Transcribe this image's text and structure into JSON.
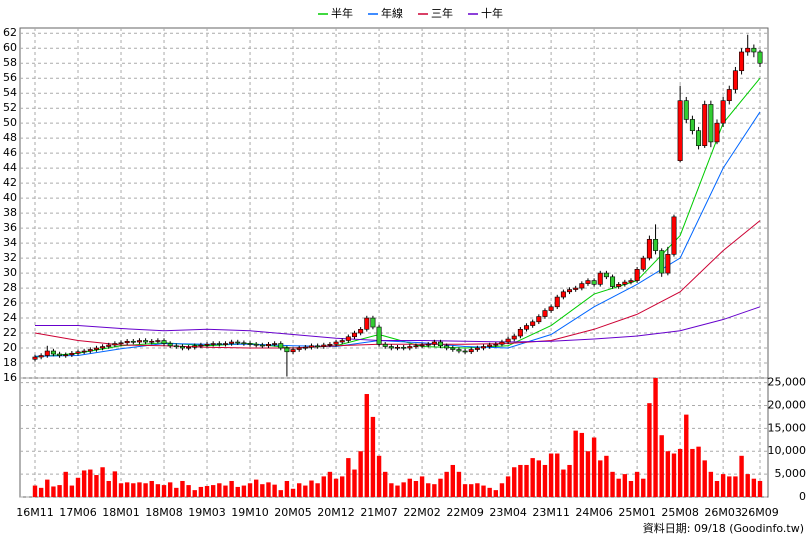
{
  "chart_data": {
    "type": "candlestick",
    "categories": [
      "16M11",
      "16M12",
      "17M01",
      "17M02",
      "17M03",
      "17M04",
      "17M05",
      "17M06",
      "17M07",
      "17M08",
      "17M09",
      "17M10",
      "17M11",
      "17M12",
      "18M01",
      "18M02",
      "18M03",
      "18M04",
      "18M05",
      "18M06",
      "18M07",
      "18M08",
      "18M09",
      "18M10",
      "18M11",
      "18M12",
      "19M01",
      "19M02",
      "19M03",
      "19M04",
      "19M05",
      "19M06",
      "19M07",
      "19M08",
      "19M09",
      "19M10",
      "19M11",
      "19M12",
      "20M01",
      "20M02",
      "20M03",
      "20M04",
      "20M05",
      "20M06",
      "20M07",
      "20M08",
      "20M09",
      "20M10",
      "20M11",
      "20M12",
      "21M01",
      "21M02",
      "21M03",
      "21M04",
      "21M05",
      "21M06",
      "21M07",
      "21M08",
      "21M09",
      "21M10",
      "21M11",
      "21M12",
      "22M01",
      "22M02",
      "22M03",
      "22M04",
      "22M05",
      "22M06",
      "22M07",
      "22M08",
      "22M09",
      "22M10",
      "22M11",
      "22M12",
      "23M01",
      "23M02",
      "23M03",
      "23M04",
      "23M05",
      "23M06",
      "23M07",
      "23M08",
      "23M09",
      "23M10",
      "23M11",
      "23M12",
      "24M01",
      "24M02",
      "24M03",
      "24M04",
      "24M05",
      "24M06",
      "24M07",
      "24M08",
      "24M09",
      "24M10",
      "24M11",
      "24M12",
      "25M01",
      "25M02",
      "25M03",
      "25M04",
      "25M05",
      "25M06",
      "25M07",
      "25M08",
      "25M09",
      "25M10",
      "25M11",
      "25M12",
      "26M01",
      "26M02",
      "26M03",
      "26M04",
      "26M05",
      "26M06",
      "26M07",
      "26M08",
      "26M09"
    ],
    "xticks": [
      "16M11",
      "17M06",
      "18M01",
      "18M08",
      "19M03",
      "19M10",
      "20M05",
      "20M12",
      "21M07",
      "22M02",
      "22M09",
      "23M04",
      "23M11",
      "24M06",
      "25M01",
      "25M08",
      "26M03",
      "26M09"
    ],
    "ylim": [
      16,
      62.7
    ],
    "yticks": [
      16,
      18,
      20,
      22,
      24,
      26,
      28,
      30,
      32,
      34,
      36,
      38,
      40,
      42,
      44,
      46,
      48,
      50,
      52,
      54,
      56,
      58,
      60,
      62
    ],
    "grid": true,
    "candles": {
      "up_color": "#ff0000",
      "down_color": "#33cc33",
      "open": [
        18.5,
        18.8,
        19.0,
        19.6,
        19.2,
        19.0,
        19.1,
        19.3,
        19.5,
        19.6,
        19.8,
        20.0,
        20.2,
        20.4,
        20.6,
        20.7,
        20.9,
        20.8,
        21.0,
        20.8,
        20.9,
        21.0,
        20.6,
        20.3,
        20.2,
        20.0,
        20.1,
        20.3,
        20.4,
        20.5,
        20.6,
        20.5,
        20.6,
        20.8,
        20.7,
        20.6,
        20.5,
        20.4,
        20.3,
        20.5,
        20.6,
        20.0,
        19.5,
        19.8,
        20.0,
        20.1,
        20.3,
        20.2,
        20.4,
        20.5,
        20.8,
        21.0,
        21.5,
        22.0,
        22.5,
        24.0,
        22.8,
        20.5,
        20.2,
        20.0,
        20.1,
        20.0,
        20.2,
        20.3,
        20.4,
        20.5,
        20.8,
        20.3,
        20.0,
        19.8,
        19.6,
        19.5,
        19.8,
        20.0,
        20.2,
        20.4,
        20.5,
        20.8,
        21.2,
        21.6,
        22.5,
        23.0,
        23.5,
        24.2,
        25.0,
        25.5,
        26.8,
        27.5,
        27.8,
        28.0,
        28.6,
        29.0,
        28.5,
        30.0,
        29.5,
        28.2,
        28.5,
        28.8,
        29.0,
        30.5,
        32.0,
        34.5,
        33.0,
        30.0,
        32.5,
        45.0,
        53.0,
        50.5,
        49.0,
        47.0,
        52.5,
        47.5,
        50.0,
        53.0,
        54.5,
        57.0,
        59.5,
        60.0,
        59.5
      ],
      "high": [
        19.1,
        19.3,
        20.3,
        19.9,
        19.5,
        19.4,
        19.6,
        19.8,
        19.9,
        20.1,
        20.3,
        20.5,
        20.7,
        20.9,
        21.0,
        21.2,
        21.2,
        21.3,
        21.3,
        21.2,
        21.3,
        21.3,
        20.9,
        20.6,
        20.5,
        20.4,
        20.6,
        20.7,
        20.8,
        20.9,
        20.9,
        20.9,
        21.1,
        21.1,
        21.0,
        20.9,
        20.8,
        20.7,
        20.8,
        20.9,
        20.9,
        20.3,
        20.1,
        20.3,
        20.4,
        20.6,
        20.6,
        20.7,
        20.8,
        21.1,
        21.3,
        21.8,
        22.3,
        22.8,
        24.3,
        24.3,
        23.1,
        20.8,
        20.5,
        20.4,
        20.4,
        20.5,
        20.6,
        20.7,
        20.8,
        21.1,
        21.1,
        20.6,
        20.3,
        20.1,
        19.9,
        20.1,
        20.3,
        20.5,
        20.7,
        20.8,
        21.1,
        21.5,
        21.9,
        22.8,
        23.3,
        23.8,
        24.5,
        25.3,
        25.8,
        27.1,
        27.8,
        28.1,
        28.3,
        28.9,
        29.3,
        29.3,
        30.3,
        30.3,
        29.8,
        28.8,
        29.1,
        29.3,
        30.8,
        32.3,
        35.0,
        36.5,
        33.3,
        33.5,
        37.8,
        55.0,
        53.5,
        51.0,
        49.5,
        53.0,
        53.0,
        50.5,
        53.5,
        55.0,
        57.5,
        60.0,
        61.8,
        60.5,
        59.8
      ],
      "low": [
        18.2,
        18.5,
        18.7,
        18.9,
        18.7,
        18.7,
        18.8,
        19.0,
        19.2,
        19.3,
        19.5,
        19.7,
        19.9,
        20.1,
        20.3,
        20.4,
        20.5,
        20.5,
        20.5,
        20.5,
        20.6,
        20.3,
        20.0,
        19.9,
        19.7,
        19.7,
        19.8,
        20.0,
        20.1,
        20.2,
        20.2,
        20.2,
        20.3,
        20.4,
        20.3,
        20.2,
        20.1,
        20.0,
        20.0,
        20.2,
        19.7,
        16.2,
        19.2,
        19.5,
        19.7,
        19.8,
        19.9,
        19.9,
        20.1,
        20.2,
        20.5,
        20.7,
        21.2,
        21.7,
        22.2,
        22.5,
        20.2,
        19.9,
        19.7,
        19.7,
        19.7,
        19.7,
        19.9,
        20.0,
        20.1,
        20.2,
        20.0,
        19.7,
        19.5,
        19.3,
        19.2,
        19.2,
        19.5,
        19.7,
        19.9,
        20.1,
        20.2,
        20.5,
        20.9,
        21.3,
        22.2,
        22.7,
        23.2,
        23.9,
        24.7,
        25.2,
        26.5,
        27.2,
        27.5,
        27.7,
        28.3,
        28.2,
        28.2,
        29.2,
        27.9,
        27.9,
        28.2,
        28.5,
        28.7,
        30.2,
        31.7,
        32.5,
        29.5,
        29.7,
        32.2,
        44.8,
        50.0,
        48.5,
        46.5,
        46.7,
        46.8,
        47.2,
        49.5,
        52.5,
        54.0,
        56.5,
        59.0,
        58.8,
        57.5
      ],
      "close": [
        18.8,
        19.0,
        19.6,
        19.2,
        19.0,
        19.1,
        19.3,
        19.5,
        19.6,
        19.8,
        20.0,
        20.2,
        20.4,
        20.6,
        20.7,
        20.9,
        20.8,
        21.0,
        20.8,
        20.9,
        21.0,
        20.6,
        20.3,
        20.2,
        20.0,
        20.1,
        20.3,
        20.4,
        20.5,
        20.6,
        20.5,
        20.6,
        20.8,
        20.7,
        20.6,
        20.5,
        20.4,
        20.3,
        20.5,
        20.6,
        20.0,
        19.5,
        19.8,
        20.0,
        20.1,
        20.3,
        20.2,
        20.4,
        20.5,
        20.8,
        21.0,
        21.5,
        22.0,
        22.5,
        24.0,
        22.8,
        20.5,
        20.2,
        20.0,
        20.1,
        20.0,
        20.2,
        20.3,
        20.4,
        20.5,
        20.8,
        20.3,
        20.0,
        19.8,
        19.6,
        19.5,
        19.8,
        20.0,
        20.2,
        20.4,
        20.5,
        20.8,
        21.2,
        21.6,
        22.5,
        23.0,
        23.5,
        24.2,
        25.0,
        25.5,
        26.8,
        27.5,
        27.8,
        28.0,
        28.6,
        29.0,
        28.5,
        30.0,
        29.5,
        28.2,
        28.5,
        28.8,
        29.0,
        30.5,
        32.0,
        34.5,
        33.0,
        30.0,
        32.5,
        37.5,
        53.0,
        50.5,
        49.0,
        47.0,
        52.5,
        47.5,
        50.0,
        53.0,
        54.5,
        57.0,
        59.5,
        60.0,
        59.5,
        58.0
      ]
    },
    "series": [
      {
        "name": "半年",
        "color": "#00cc00",
        "x": [
          "16M11",
          "17M06",
          "18M01",
          "18M08",
          "19M03",
          "19M10",
          "20M05",
          "20M12",
          "21M07",
          "22M02",
          "22M09",
          "23M04",
          "23M11",
          "24M06",
          "25M01",
          "25M08",
          "26M03",
          "26M09"
        ],
        "values": [
          18.8,
          19.3,
          20.3,
          20.7,
          20.3,
          20.6,
          20.0,
          20.3,
          21.8,
          20.2,
          20.0,
          20.3,
          23.0,
          27.2,
          29.0,
          35.0,
          50.0,
          56.0
        ]
      },
      {
        "name": "年線",
        "color": "#0066ff",
        "x": [
          "16M11",
          "17M06",
          "18M01",
          "18M08",
          "19M03",
          "19M10",
          "20M05",
          "20M12",
          "21M07",
          "22M02",
          "22M09",
          "23M04",
          "23M11",
          "24M06",
          "25M01",
          "25M08",
          "26M03",
          "26M09"
        ],
        "values": [
          18.9,
          19.0,
          19.9,
          20.6,
          20.5,
          20.5,
          20.3,
          20.2,
          21.0,
          20.7,
          20.2,
          20.0,
          21.8,
          25.5,
          28.5,
          32.0,
          44.0,
          51.5
        ]
      },
      {
        "name": "三年",
        "color": "#cc0033",
        "x": [
          "16M11",
          "17M06",
          "18M01",
          "18M08",
          "19M03",
          "19M10",
          "20M05",
          "20M12",
          "21M07",
          "22M02",
          "22M09",
          "23M04",
          "23M11",
          "24M06",
          "25M01",
          "25M08",
          "26M03",
          "26M09"
        ],
        "values": [
          22.0,
          21.0,
          20.4,
          20.3,
          20.1,
          20.0,
          20.0,
          20.3,
          20.5,
          20.5,
          20.5,
          20.6,
          21.0,
          22.5,
          24.5,
          27.5,
          33.0,
          37.0
        ]
      },
      {
        "name": "十年",
        "color": "#6600cc",
        "x": [
          "16M11",
          "17M06",
          "18M01",
          "18M08",
          "19M03",
          "19M10",
          "20M05",
          "20M12",
          "21M07",
          "22M02",
          "22M09",
          "23M04",
          "23M11",
          "24M06",
          "25M01",
          "25M08",
          "26M03",
          "26M09"
        ],
        "values": [
          23.0,
          23.0,
          22.6,
          22.3,
          22.5,
          22.3,
          21.8,
          21.3,
          21.0,
          21.0,
          20.9,
          20.8,
          20.9,
          21.2,
          21.6,
          22.3,
          23.8,
          25.5
        ]
      }
    ],
    "volume": {
      "color": "#ff0000",
      "ylim": [
        0,
        26000
      ],
      "yticks": [
        0,
        {
          "value": 5000,
          "label": "5,000"
        },
        {
          "value": 10000,
          "label": "10,000"
        },
        {
          "value": 15000,
          "label": "15,000"
        },
        {
          "value": 20000,
          "label": "20,000"
        },
        {
          "value": 25000,
          "label": "25,000"
        }
      ],
      "values": [
        2500,
        2000,
        3800,
        2300,
        2600,
        5500,
        2500,
        4200,
        5800,
        6000,
        4800,
        6500,
        3500,
        5600,
        3000,
        3200,
        3000,
        3200,
        3000,
        3500,
        2800,
        2600,
        3200,
        2000,
        3500,
        2600,
        1500,
        2200,
        2400,
        2600,
        3000,
        2500,
        3500,
        2200,
        2500,
        3000,
        3800,
        2800,
        3200,
        2700,
        1500,
        3500,
        1800,
        3000,
        2500,
        3600,
        3000,
        4500,
        5500,
        4000,
        4500,
        8500,
        6000,
        10000,
        22500,
        17500,
        9000,
        5500,
        3000,
        2500,
        3200,
        4000,
        3500,
        4500,
        3000,
        2800,
        4000,
        5500,
        7000,
        5500,
        2800,
        2800,
        3000,
        2500,
        2000,
        1500,
        3000,
        4500,
        6500,
        7000,
        7000,
        8500,
        8000,
        7000,
        9500,
        9500,
        6000,
        7000,
        14500,
        14000,
        10000,
        13000,
        8000,
        9000,
        5500,
        4000,
        5000,
        3500,
        5500,
        4000,
        20500,
        26000,
        13500,
        10000,
        9500,
        10500,
        18000,
        10500,
        11000,
        8000,
        5500,
        3500,
        5000,
        4500,
        4500,
        9000,
        5000,
        4000,
        3500
      ]
    }
  },
  "footer": "資料日期: 09/18 (Goodinfo.tw)"
}
